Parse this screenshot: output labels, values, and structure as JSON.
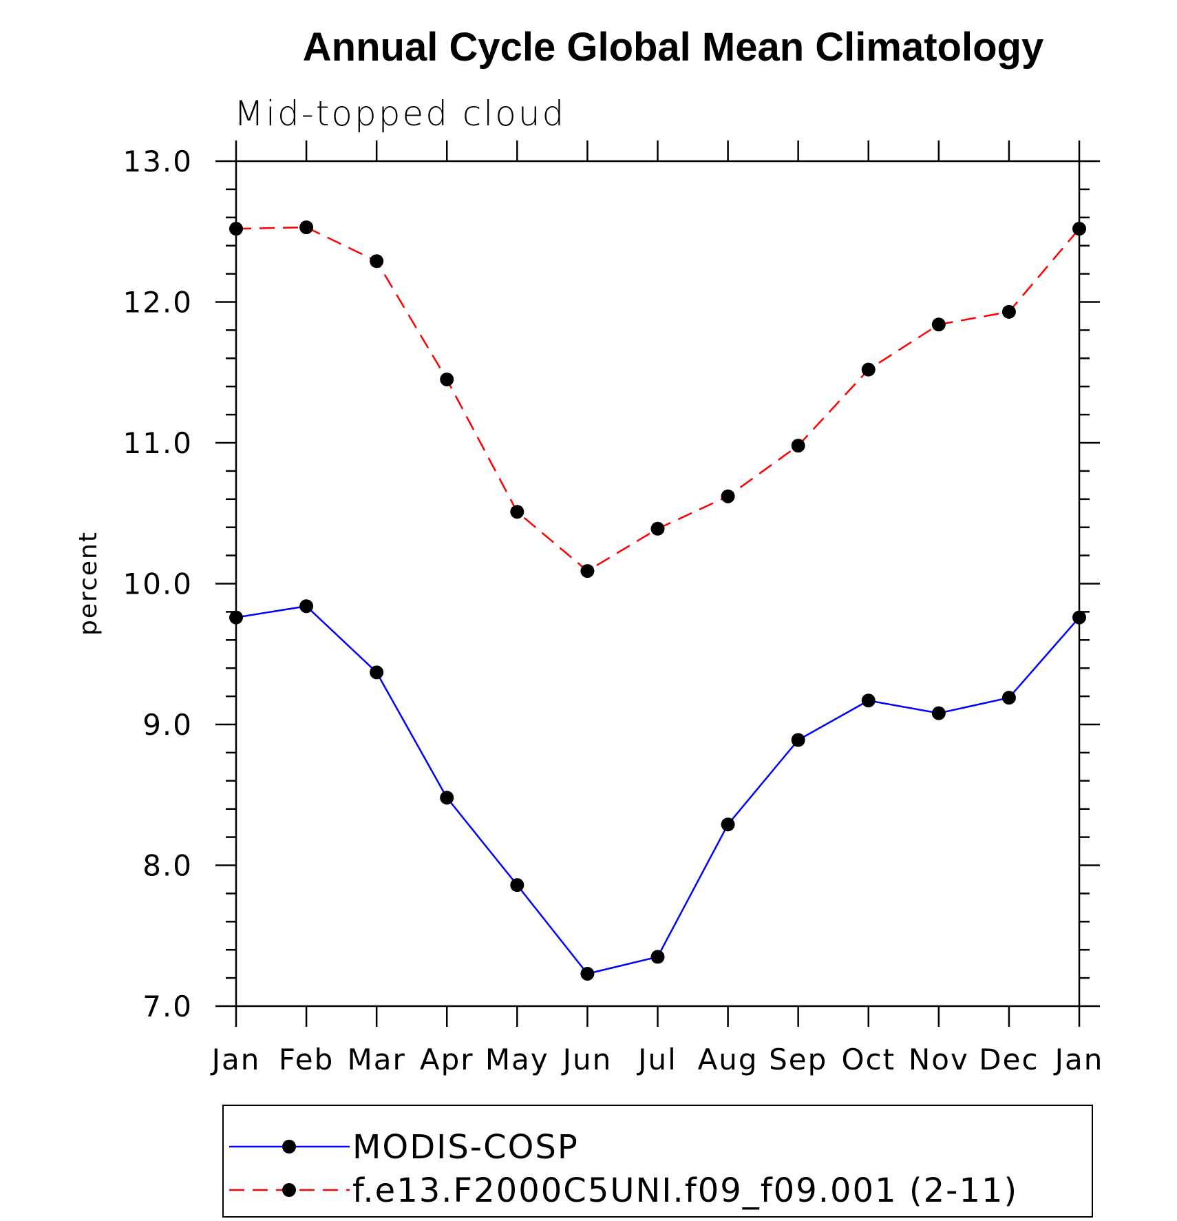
{
  "chart_data": {
    "type": "line",
    "title": "Annual Cycle Global Mean Climatology",
    "subtitle": "Mid-topped cloud",
    "xlabel": "",
    "ylabel": "percent",
    "categories": [
      "Jan",
      "Feb",
      "Mar",
      "Apr",
      "May",
      "Jun",
      "Jul",
      "Aug",
      "Sep",
      "Oct",
      "Nov",
      "Dec",
      "Jan"
    ],
    "ylim": [
      7.0,
      13.0
    ],
    "yticks": [
      "7.0",
      "8.0",
      "9.0",
      "10.0",
      "11.0",
      "12.0",
      "13.0"
    ],
    "ytick_values": [
      7,
      8,
      9,
      10,
      11,
      12,
      13
    ],
    "grid": false,
    "legend_position": "bottom",
    "series": [
      {
        "name": "MODIS-COSP",
        "color": "#0000ff",
        "line_style": "solid",
        "marker": "filled-circle",
        "values": [
          9.76,
          9.84,
          9.37,
          8.48,
          7.86,
          7.23,
          7.35,
          8.29,
          8.89,
          9.17,
          9.08,
          9.19,
          9.76
        ]
      },
      {
        "name": "f.e13.F2000C5UNI.f09_f09.001 (2-11)",
        "color": "#ff0000",
        "line_style": "dashed",
        "marker": "filled-circle",
        "values": [
          12.52,
          12.53,
          12.29,
          11.45,
          10.51,
          10.09,
          10.39,
          10.62,
          10.98,
          11.52,
          11.84,
          11.93,
          12.52
        ]
      }
    ]
  }
}
